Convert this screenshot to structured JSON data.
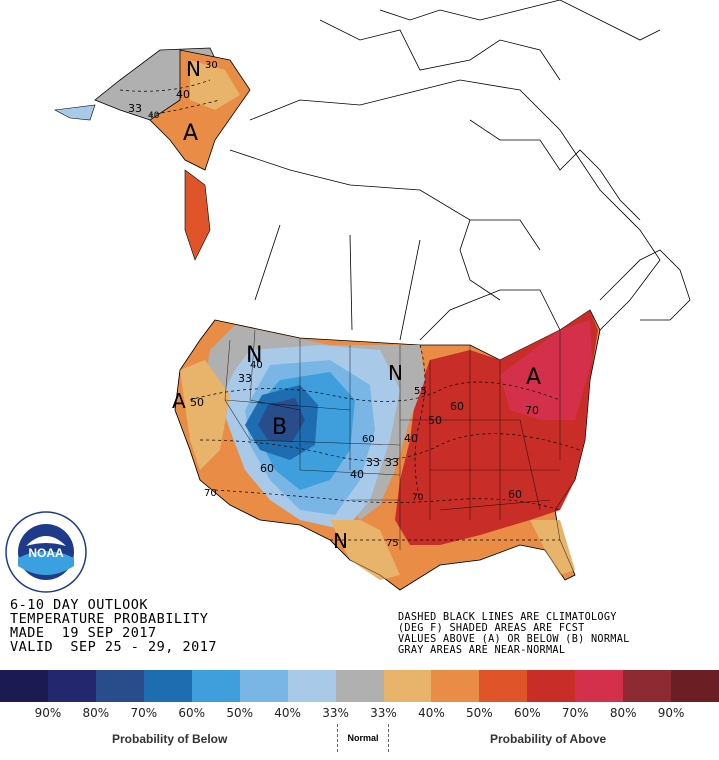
{
  "header": {
    "line1": "6-10 DAY OUTLOOK",
    "line2": "TEMPERATURE PROBABILITY",
    "line3": "MADE  19 SEP 2017",
    "line4": "VALID  SEP 25 - 29, 2017"
  },
  "notes": {
    "line1": "DASHED BLACK LINES ARE CLIMATOLOGY",
    "line2": "(DEG F) SHADED AREAS ARE FCST",
    "line3": "VALUES ABOVE (A) OR BELOW (B) NORMAL",
    "line4": "GRAY AREAS ARE NEAR-NORMAL"
  },
  "logo": {
    "name": "NOAA",
    "ring_text": "NATIONAL OCEANIC AND ATMOSPHERIC ADMINISTRATION · U.S. DEPARTMENT OF COMMERCE"
  },
  "map_labels": {
    "N_alaska": "N",
    "A_alaska": "A",
    "v30": "30",
    "v33_ak": "33",
    "v40_ak": "40",
    "v40_ak2": "40",
    "N_west": "N",
    "B_center": "B",
    "N_plains": "N",
    "A_east": "A",
    "A_west": "A",
    "N_south": "N",
    "v33_w": "33",
    "v40_w": "40",
    "v50_w": "50",
    "v60_c": "60",
    "v70_w": "70",
    "v55": "55",
    "v60_e": "60",
    "v50_e": "50",
    "v40_e": "40",
    "v40_c": "40",
    "v33_c": "33",
    "v33_c2": "33",
    "v70_e": "70",
    "v70_e2": "70",
    "v75": "75",
    "v60_se": "60",
    "v60_c2": "60"
  },
  "legend": {
    "colors": [
      "#1b1a52",
      "#23276e",
      "#294c8a",
      "#1d6db0",
      "#3f9fdc",
      "#79b6e6",
      "#a9c9e9",
      "#b0b0b0",
      "#e8b36a",
      "#e88c46",
      "#e0542a",
      "#c92d27",
      "#d4304c",
      "#8e2a31",
      "#6b1e24"
    ],
    "ticks": [
      "90%",
      "80%",
      "70%",
      "60%",
      "50%",
      "40%",
      "33%",
      "33%",
      "40%",
      "50%",
      "60%",
      "70%",
      "80%",
      "90%"
    ],
    "below_label": "Probability of Below",
    "normal_label": "Normal",
    "above_label": "Probability of Above"
  }
}
